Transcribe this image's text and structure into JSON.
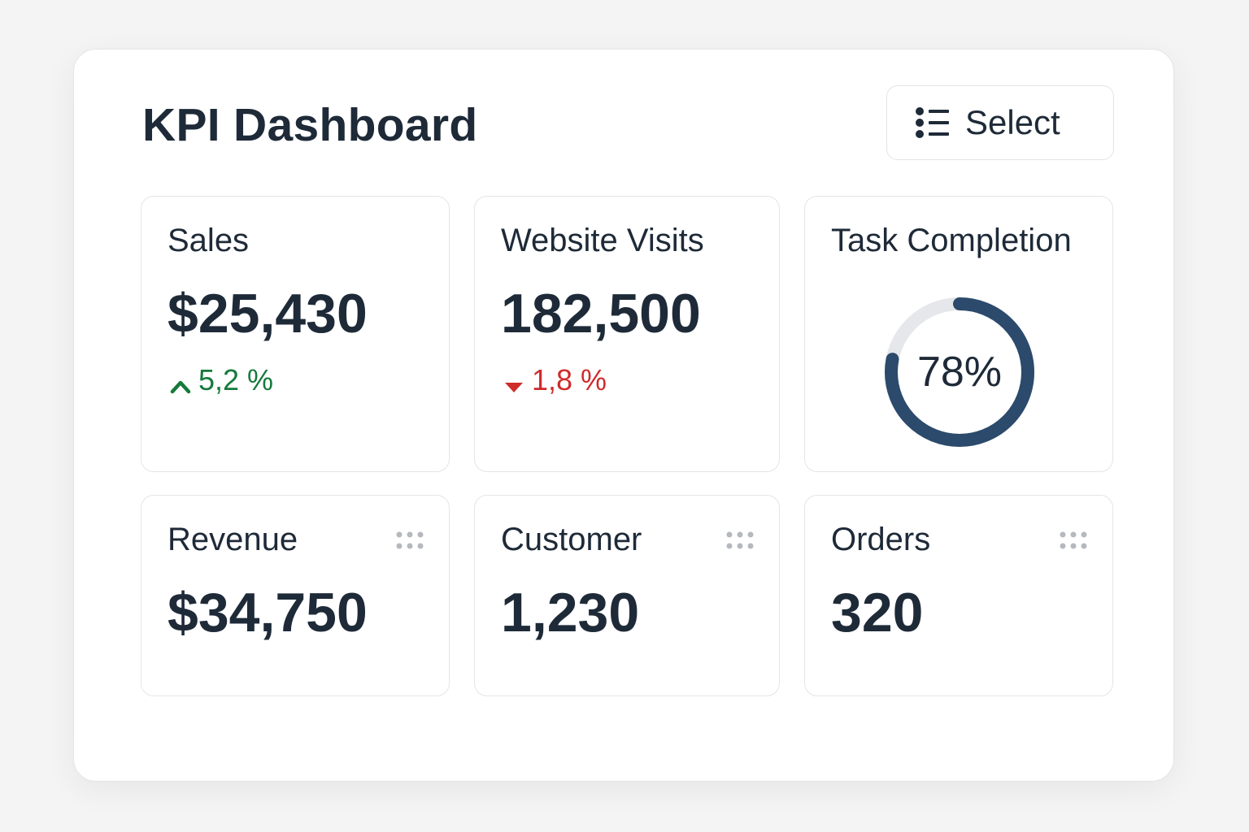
{
  "header": {
    "title": "KPI Dashboard",
    "select_label": "Select"
  },
  "cards": {
    "sales": {
      "title": "Sales",
      "value": "$25,430",
      "change": "5,2 %",
      "trend": "up"
    },
    "visits": {
      "title": "Website Visits",
      "value": "182,500",
      "change": "1,8 %",
      "trend": "down"
    },
    "tasks": {
      "title": "Task Completion",
      "percent_label": "78%",
      "progress": 0.78
    },
    "revenue": {
      "title": "Revenue",
      "value": "$34,750"
    },
    "customer": {
      "title": "Customer",
      "value": "1,230"
    },
    "orders": {
      "title": "Orders",
      "value": "320"
    }
  },
  "icons": {
    "select": "list-icon",
    "up": "arrow-up-icon",
    "down": "arrow-down-icon",
    "drag": "drag-handle-icon"
  },
  "colors": {
    "text": "#1e2a38",
    "positive": "#157a3b",
    "negative": "#d02b2b",
    "gauge_fill": "#2c4a6b",
    "gauge_track": "#e5e7ea"
  }
}
